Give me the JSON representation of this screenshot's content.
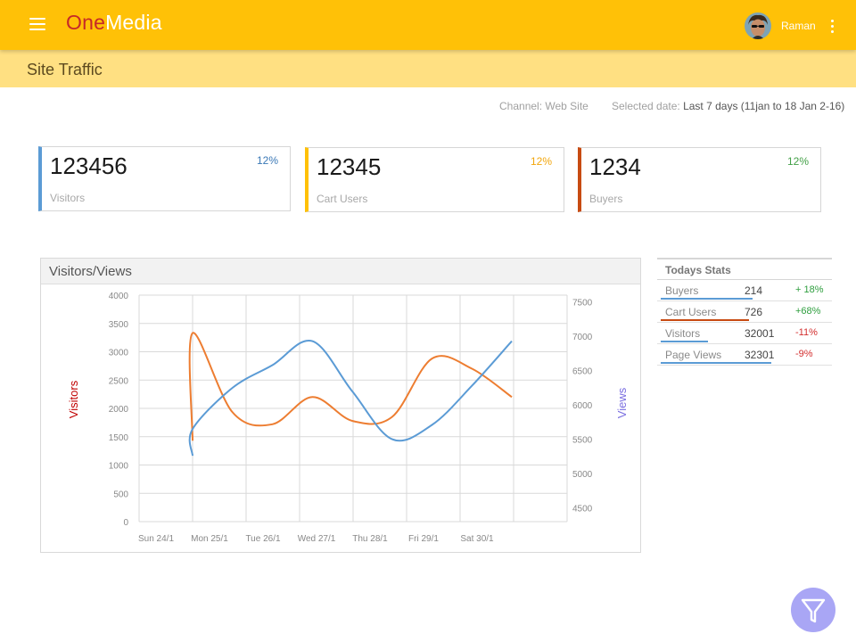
{
  "app": {
    "logo_part1": "One",
    "logo_part2": "Media",
    "user_name": "Raman"
  },
  "page": {
    "title": "Site Traffic"
  },
  "filters": {
    "channel_label": "Channel:",
    "channel_value": "Web Site",
    "date_label": "Selected date:",
    "date_value": "Last 7 days (11jan to 18 Jan 2-16)"
  },
  "kpis": [
    {
      "value": "123456",
      "change": "12%",
      "label": "Visitors",
      "color": "#5B9BD5",
      "change_color": "#3A78B6"
    },
    {
      "value": "12345",
      "change": "12%",
      "label": "Cart Users",
      "color": "#FFC107",
      "change_color": "#F2A60C"
    },
    {
      "value": "1234",
      "change": "12%",
      "label": "Buyers",
      "color": "#C84B12",
      "change_color": "#43A047"
    }
  ],
  "chart_data": {
    "type": "line",
    "title": "Visitors/Views",
    "categories": [
      "Sun 24/1",
      "Mon 25/1",
      "Tue 26/1",
      "Wed 27/1",
      "Thu 28/1",
      "Fri 29/1",
      "Sat 30/1"
    ],
    "left_axis": {
      "label": "Visitors",
      "min": 0,
      "max": 4000,
      "ticks": [
        "4000",
        "3500",
        "3000",
        "2500",
        "2000",
        "1500",
        "1000",
        "500",
        "0"
      ],
      "label_color": "#C00000"
    },
    "right_axis": {
      "label": "Views",
      "min": 4300,
      "max": 7600,
      "ticks": [
        "7500",
        "7000",
        "6500",
        "6000",
        "5500",
        "5000",
        "4500"
      ],
      "label_color": "#7B6FE0"
    },
    "series": [
      {
        "name": "Visitors",
        "axis": "left",
        "color": "#ED7D31",
        "x": [
          0.65,
          1.0,
          1.5,
          2.0,
          2.5,
          3.0,
          3.5,
          4.0,
          4.5,
          5.0
        ],
        "values": [
          1430,
          3330,
          1930,
          1720,
          2200,
          1780,
          1850,
          2880,
          2700,
          2200
        ]
      },
      {
        "name": "Views",
        "axis": "right",
        "color": "#5B9BD5",
        "x": [
          0.65,
          1.0,
          1.5,
          2.0,
          2.5,
          3.0,
          3.5,
          4.0,
          4.5,
          5.0
        ],
        "values": [
          5260,
          5650,
          6250,
          6580,
          6930,
          6200,
          5500,
          5710,
          6280,
          6930
        ]
      }
    ]
  },
  "todays_stats": {
    "title": "Todays Stats",
    "rows": [
      {
        "name": "Buyers",
        "value": "214",
        "change": "+ 18%",
        "change_color": "#2E9E3E",
        "bar_color": "#5B9BD5",
        "progress": 0.54
      },
      {
        "name": "Cart Users",
        "value": "726",
        "change": "+68%",
        "change_color": "#2E9E3E",
        "bar_color": "#C84B12",
        "progress": 0.52
      },
      {
        "name": "Visitors",
        "value": "32001",
        "change": "-11%",
        "change_color": "#D32F2F",
        "bar_color": "#5B9BD5",
        "progress": 0.28
      },
      {
        "name": "Page Views",
        "value": "32301",
        "change": "-9%",
        "change_color": "#D32F2F",
        "bar_color": "#5B9BD5",
        "progress": 0.65
      }
    ]
  },
  "icons": {
    "menu": "hamburger-icon",
    "more": "kebab-icon",
    "fab": "filter-icon"
  }
}
